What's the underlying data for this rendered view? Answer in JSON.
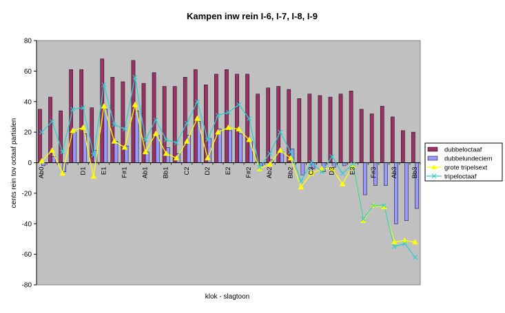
{
  "chart_data": {
    "type": "bar",
    "title": "Kampen inw rein I-6, I-7, I-8, I-9",
    "xlabel": "klok - slagtoon",
    "ylabel": "cents rein tov octaaf partialen",
    "ylim": [
      -80,
      80
    ],
    "yticks": [
      -80,
      -60,
      -40,
      -20,
      0,
      20,
      40,
      60,
      80
    ],
    "grid": false,
    "legend_position": "right",
    "plot_background": "#c0c0c0",
    "tick_labels": [
      {
        "index": 0,
        "label": "Ab0"
      },
      {
        "index": 4,
        "label": "D1"
      },
      {
        "index": 6,
        "label": "E1"
      },
      {
        "index": 8,
        "label": "F#1"
      },
      {
        "index": 10,
        "label": "Ab1"
      },
      {
        "index": 12,
        "label": "Bb1"
      },
      {
        "index": 14,
        "label": "C2"
      },
      {
        "index": 16,
        "label": "D2"
      },
      {
        "index": 18,
        "label": "E2"
      },
      {
        "index": 20,
        "label": "F#2"
      },
      {
        "index": 22,
        "label": "Ab2"
      },
      {
        "index": 24,
        "label": "Bb2"
      },
      {
        "index": 26,
        "label": "C3"
      },
      {
        "index": 28,
        "label": "D3"
      },
      {
        "index": 30,
        "label": "E3"
      },
      {
        "index": 32,
        "label": "F#3"
      },
      {
        "index": 34,
        "label": "Ab3"
      },
      {
        "index": 36,
        "label": "Bb3"
      }
    ],
    "series": [
      {
        "name": "dubbeloctaaf",
        "kind": "bar",
        "color": "#993366",
        "values": [
          35,
          43,
          34,
          61,
          61,
          36,
          68,
          56,
          53,
          67,
          52,
          59,
          50,
          50,
          56,
          61,
          51,
          58,
          61,
          58,
          58,
          45,
          49,
          50,
          48,
          42,
          45,
          44,
          43,
          45,
          47,
          35,
          32,
          37,
          30,
          21,
          20
        ]
      },
      {
        "name": "dubbelundeciem",
        "kind": "bar",
        "color": "#9999ff",
        "values": [
          -2,
          4,
          -6,
          20,
          19,
          8,
          35,
          14,
          11,
          34,
          7,
          18,
          10,
          6,
          18,
          27,
          16,
          22,
          21,
          19,
          14,
          -2,
          2,
          7,
          9,
          -8,
          -4,
          -6,
          -3,
          -2,
          0,
          -21,
          -15,
          -15,
          -40,
          -38,
          -30
        ]
      },
      {
        "name": "grote tripelsext",
        "kind": "line",
        "color": "#ffff00",
        "marker": "triangle",
        "values": [
          1,
          8,
          -7,
          21,
          23,
          -9,
          37,
          14,
          10,
          38,
          7,
          19,
          6,
          3,
          14,
          29,
          3,
          20,
          23,
          22,
          15,
          -4,
          -1,
          8,
          3,
          -16,
          -7,
          -4,
          -4,
          -14,
          -2,
          -38,
          -28,
          -29,
          -52,
          -51,
          -52
        ]
      },
      {
        "name": "tripeloctaaf",
        "kind": "line",
        "color": "#33cccc",
        "marker": "x",
        "values": [
          20,
          27,
          7,
          35,
          36,
          5,
          51,
          25,
          22,
          56,
          15,
          28,
          15,
          13,
          26,
          40,
          15,
          31,
          33,
          38,
          29,
          -3,
          6,
          20,
          7,
          -12,
          0,
          -6,
          4,
          -7,
          -1,
          -37,
          -28,
          -28,
          -55,
          -53,
          -62
        ]
      }
    ]
  }
}
